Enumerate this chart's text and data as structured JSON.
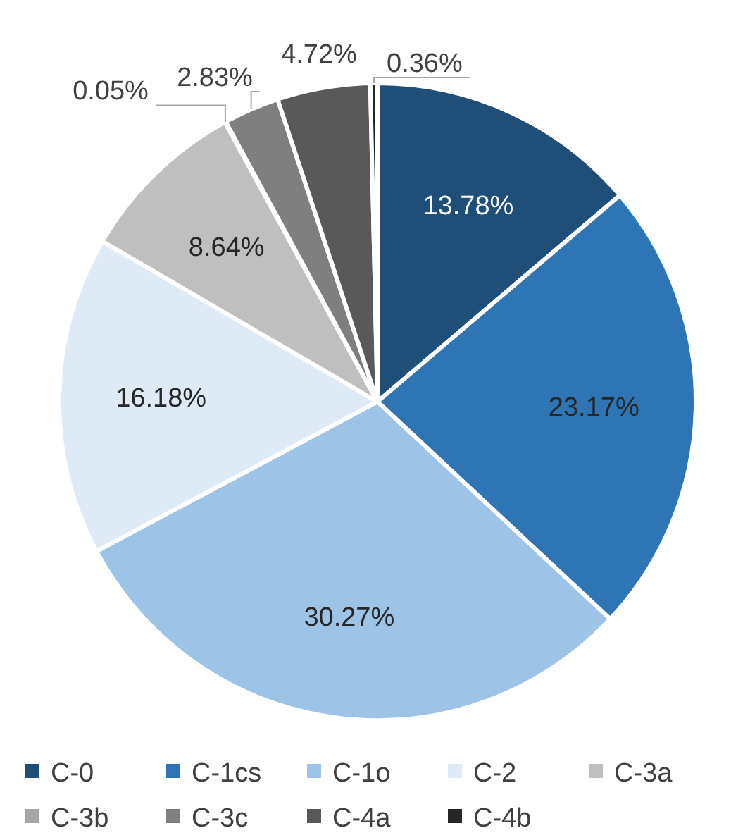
{
  "chart_data": {
    "type": "pie",
    "categories": [
      "C-0",
      "C-1cs",
      "C-1o",
      "C-2",
      "C-3a",
      "C-3b",
      "C-3c",
      "C-4a",
      "C-4b"
    ],
    "values": [
      13.78,
      23.17,
      30.27,
      16.18,
      8.64,
      0.05,
      2.83,
      4.72,
      0.36
    ],
    "colors": [
      "#1f4e79",
      "#2e75b6",
      "#9dc3e6",
      "#deebf7",
      "#bfbfbf",
      "#a6a6a6",
      "#7f7f7f",
      "#595959",
      "#262626"
    ],
    "value_labels": [
      "13.78%",
      "23.17%",
      "30.27%",
      "16.18%",
      "8.64%",
      "0.05%",
      "2.83%",
      "4.72%",
      "0.36%"
    ],
    "legend": "bottom"
  }
}
